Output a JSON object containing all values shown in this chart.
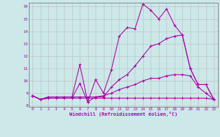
{
  "title": "",
  "xlabel": "Windchill (Refroidissement éolien,°C)",
  "ylabel": "",
  "bg_color": "#cce8e8",
  "line_color": "#aa00aa",
  "grid_color": "#bbbbbb",
  "xlim": [
    -0.5,
    23.5
  ],
  "ylim": [
    7.9,
    16.3
  ],
  "yticks": [
    8,
    9,
    10,
    11,
    12,
    13,
    14,
    15,
    16
  ],
  "xticks": [
    0,
    1,
    2,
    3,
    4,
    5,
    6,
    7,
    8,
    9,
    10,
    11,
    12,
    13,
    14,
    15,
    16,
    17,
    18,
    19,
    20,
    21,
    22,
    23
  ],
  "line1_x": [
    0,
    1,
    2,
    3,
    4,
    5,
    6,
    7,
    8,
    9,
    10,
    11,
    12,
    13,
    14,
    15,
    16,
    17,
    18,
    19,
    20,
    21,
    22,
    23
  ],
  "line1_y": [
    8.8,
    8.5,
    8.7,
    8.7,
    8.7,
    8.7,
    11.3,
    8.3,
    10.1,
    9.0,
    10.9,
    13.6,
    14.3,
    14.2,
    16.2,
    15.7,
    15.0,
    15.8,
    14.5,
    13.7,
    11.0,
    9.7,
    9.7,
    8.5
  ],
  "line2_x": [
    0,
    1,
    2,
    3,
    4,
    5,
    6,
    7,
    8,
    9,
    10,
    11,
    12,
    13,
    14,
    15,
    16,
    17,
    18,
    19,
    20,
    21,
    22,
    23
  ],
  "line2_y": [
    8.8,
    8.5,
    8.7,
    8.7,
    8.7,
    8.7,
    8.7,
    8.7,
    8.7,
    8.7,
    9.5,
    10.1,
    10.5,
    11.2,
    12.0,
    12.8,
    13.0,
    13.4,
    13.6,
    13.7,
    11.0,
    9.7,
    9.7,
    8.5
  ],
  "line3_x": [
    0,
    1,
    2,
    3,
    4,
    5,
    6,
    7,
    8,
    9,
    10,
    11,
    12,
    13,
    14,
    15,
    16,
    17,
    18,
    19,
    20,
    21,
    22,
    23
  ],
  "line3_y": [
    8.8,
    8.5,
    8.6,
    8.6,
    8.6,
    8.6,
    9.8,
    8.3,
    8.7,
    8.8,
    9.0,
    9.3,
    9.5,
    9.7,
    10.0,
    10.2,
    10.2,
    10.4,
    10.5,
    10.5,
    10.4,
    9.5,
    9.0,
    8.5
  ],
  "line4_x": [
    0,
    1,
    2,
    3,
    4,
    5,
    6,
    7,
    8,
    9,
    10,
    11,
    12,
    13,
    14,
    15,
    16,
    17,
    18,
    19,
    20,
    21,
    22,
    23
  ],
  "line4_y": [
    8.8,
    8.5,
    8.6,
    8.6,
    8.6,
    8.6,
    8.6,
    8.6,
    8.6,
    8.6,
    8.6,
    8.6,
    8.6,
    8.6,
    8.6,
    8.6,
    8.6,
    8.6,
    8.6,
    8.6,
    8.6,
    8.6,
    8.6,
    8.5
  ]
}
